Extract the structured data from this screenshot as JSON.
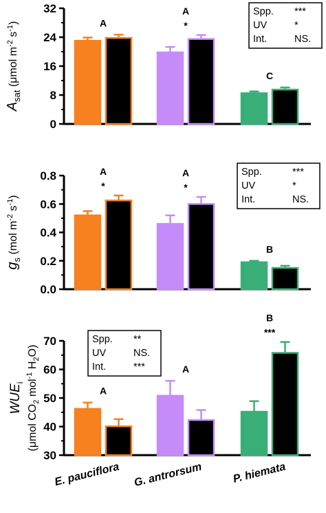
{
  "colors": {
    "E. pauciflora": "#f7801f",
    "G. antrorsum": "#c58cf9",
    "P. hiemata": "#3aae78"
  },
  "categories": [
    "E. pauciflora",
    "G. antrorsum",
    "P. hiemata"
  ],
  "chart_data": [
    {
      "type": "bar",
      "ylabel": {
        "pre": "A",
        "sub": "sat",
        "post": " (μmol m",
        "sup": "-2",
        "post2": " s",
        "sup2": "-1",
        "end": ")"
      },
      "ylim": [
        0,
        32
      ],
      "yticks": [
        "0",
        "8",
        "16",
        "24",
        "32"
      ],
      "categories": [
        "E. pauciflora",
        "G. antrorsum",
        "P. hiemata"
      ],
      "series": [
        {
          "pattern": "solid",
          "values": [
            23.0,
            19.8,
            8.5
          ],
          "errors": [
            0.9,
            1.5,
            0.5
          ]
        },
        {
          "pattern": "hatched",
          "values": [
            23.8,
            23.5,
            9.5
          ],
          "errors": [
            0.9,
            1.1,
            0.6
          ]
        }
      ],
      "group_letters": [
        "A",
        "A",
        "C"
      ],
      "uv_marks": [
        "",
        "*",
        ""
      ],
      "legend": [
        {
          "label": "Spp.",
          "value": "***"
        },
        {
          "label": "UV",
          "value": "*"
        },
        {
          "label": "Int.",
          "value": "NS."
        }
      ]
    },
    {
      "type": "bar",
      "ylabel": {
        "pre": "g",
        "sub": "s",
        "post": " (mol m",
        "sup": "-2",
        "post2": " s",
        "sup2": "-1",
        "end": ")"
      },
      "ylim": [
        0,
        0.8
      ],
      "yticks": [
        "0.0",
        "0.2",
        "0.4",
        "0.6",
        "0.8"
      ],
      "categories": [
        "E. pauciflora",
        "G. antrorsum",
        "P. hiemata"
      ],
      "series": [
        {
          "pattern": "solid",
          "values": [
            0.52,
            0.46,
            0.19
          ],
          "errors": [
            0.03,
            0.06,
            0.01
          ]
        },
        {
          "pattern": "hatched",
          "values": [
            0.625,
            0.6,
            0.15
          ],
          "errors": [
            0.035,
            0.05,
            0.015
          ]
        }
      ],
      "group_letters": [
        "A",
        "A",
        "B"
      ],
      "uv_marks": [
        "*",
        "*",
        ""
      ],
      "legend": [
        {
          "label": "Spp.",
          "value": "***"
        },
        {
          "label": "UV",
          "value": "*"
        },
        {
          "label": "Int.",
          "value": "NS."
        }
      ]
    },
    {
      "type": "bar",
      "ylabel_line1": {
        "pre": "WUE",
        "sub": "i"
      },
      "ylabel_line2": {
        "pre": "(μmol CO",
        "sub": "2",
        "post": " mol",
        "sup": "-1",
        "post2": " H",
        "sub2": "2",
        "end": "O)"
      },
      "ylim": [
        30,
        70
      ],
      "yticks": [
        "30",
        "40",
        "50",
        "60",
        "70"
      ],
      "categories": [
        "E. pauciflora",
        "G. antrorsum",
        "P. hiemata"
      ],
      "series": [
        {
          "pattern": "solid",
          "values": [
            46.2,
            50.8,
            45.2
          ],
          "errors": [
            2.2,
            5.2,
            3.7
          ]
        },
        {
          "pattern": "hatched",
          "values": [
            40.1,
            42.3,
            65.8
          ],
          "errors": [
            2.5,
            3.5,
            3.8
          ]
        }
      ],
      "group_letters": [
        "A",
        "A",
        "B"
      ],
      "uv_marks": [
        "",
        "",
        "***"
      ],
      "legend": [
        {
          "label": "Spp.",
          "value": "**"
        },
        {
          "label": "UV",
          "value": "NS."
        },
        {
          "label": "Int.",
          "value": "***"
        }
      ]
    }
  ]
}
